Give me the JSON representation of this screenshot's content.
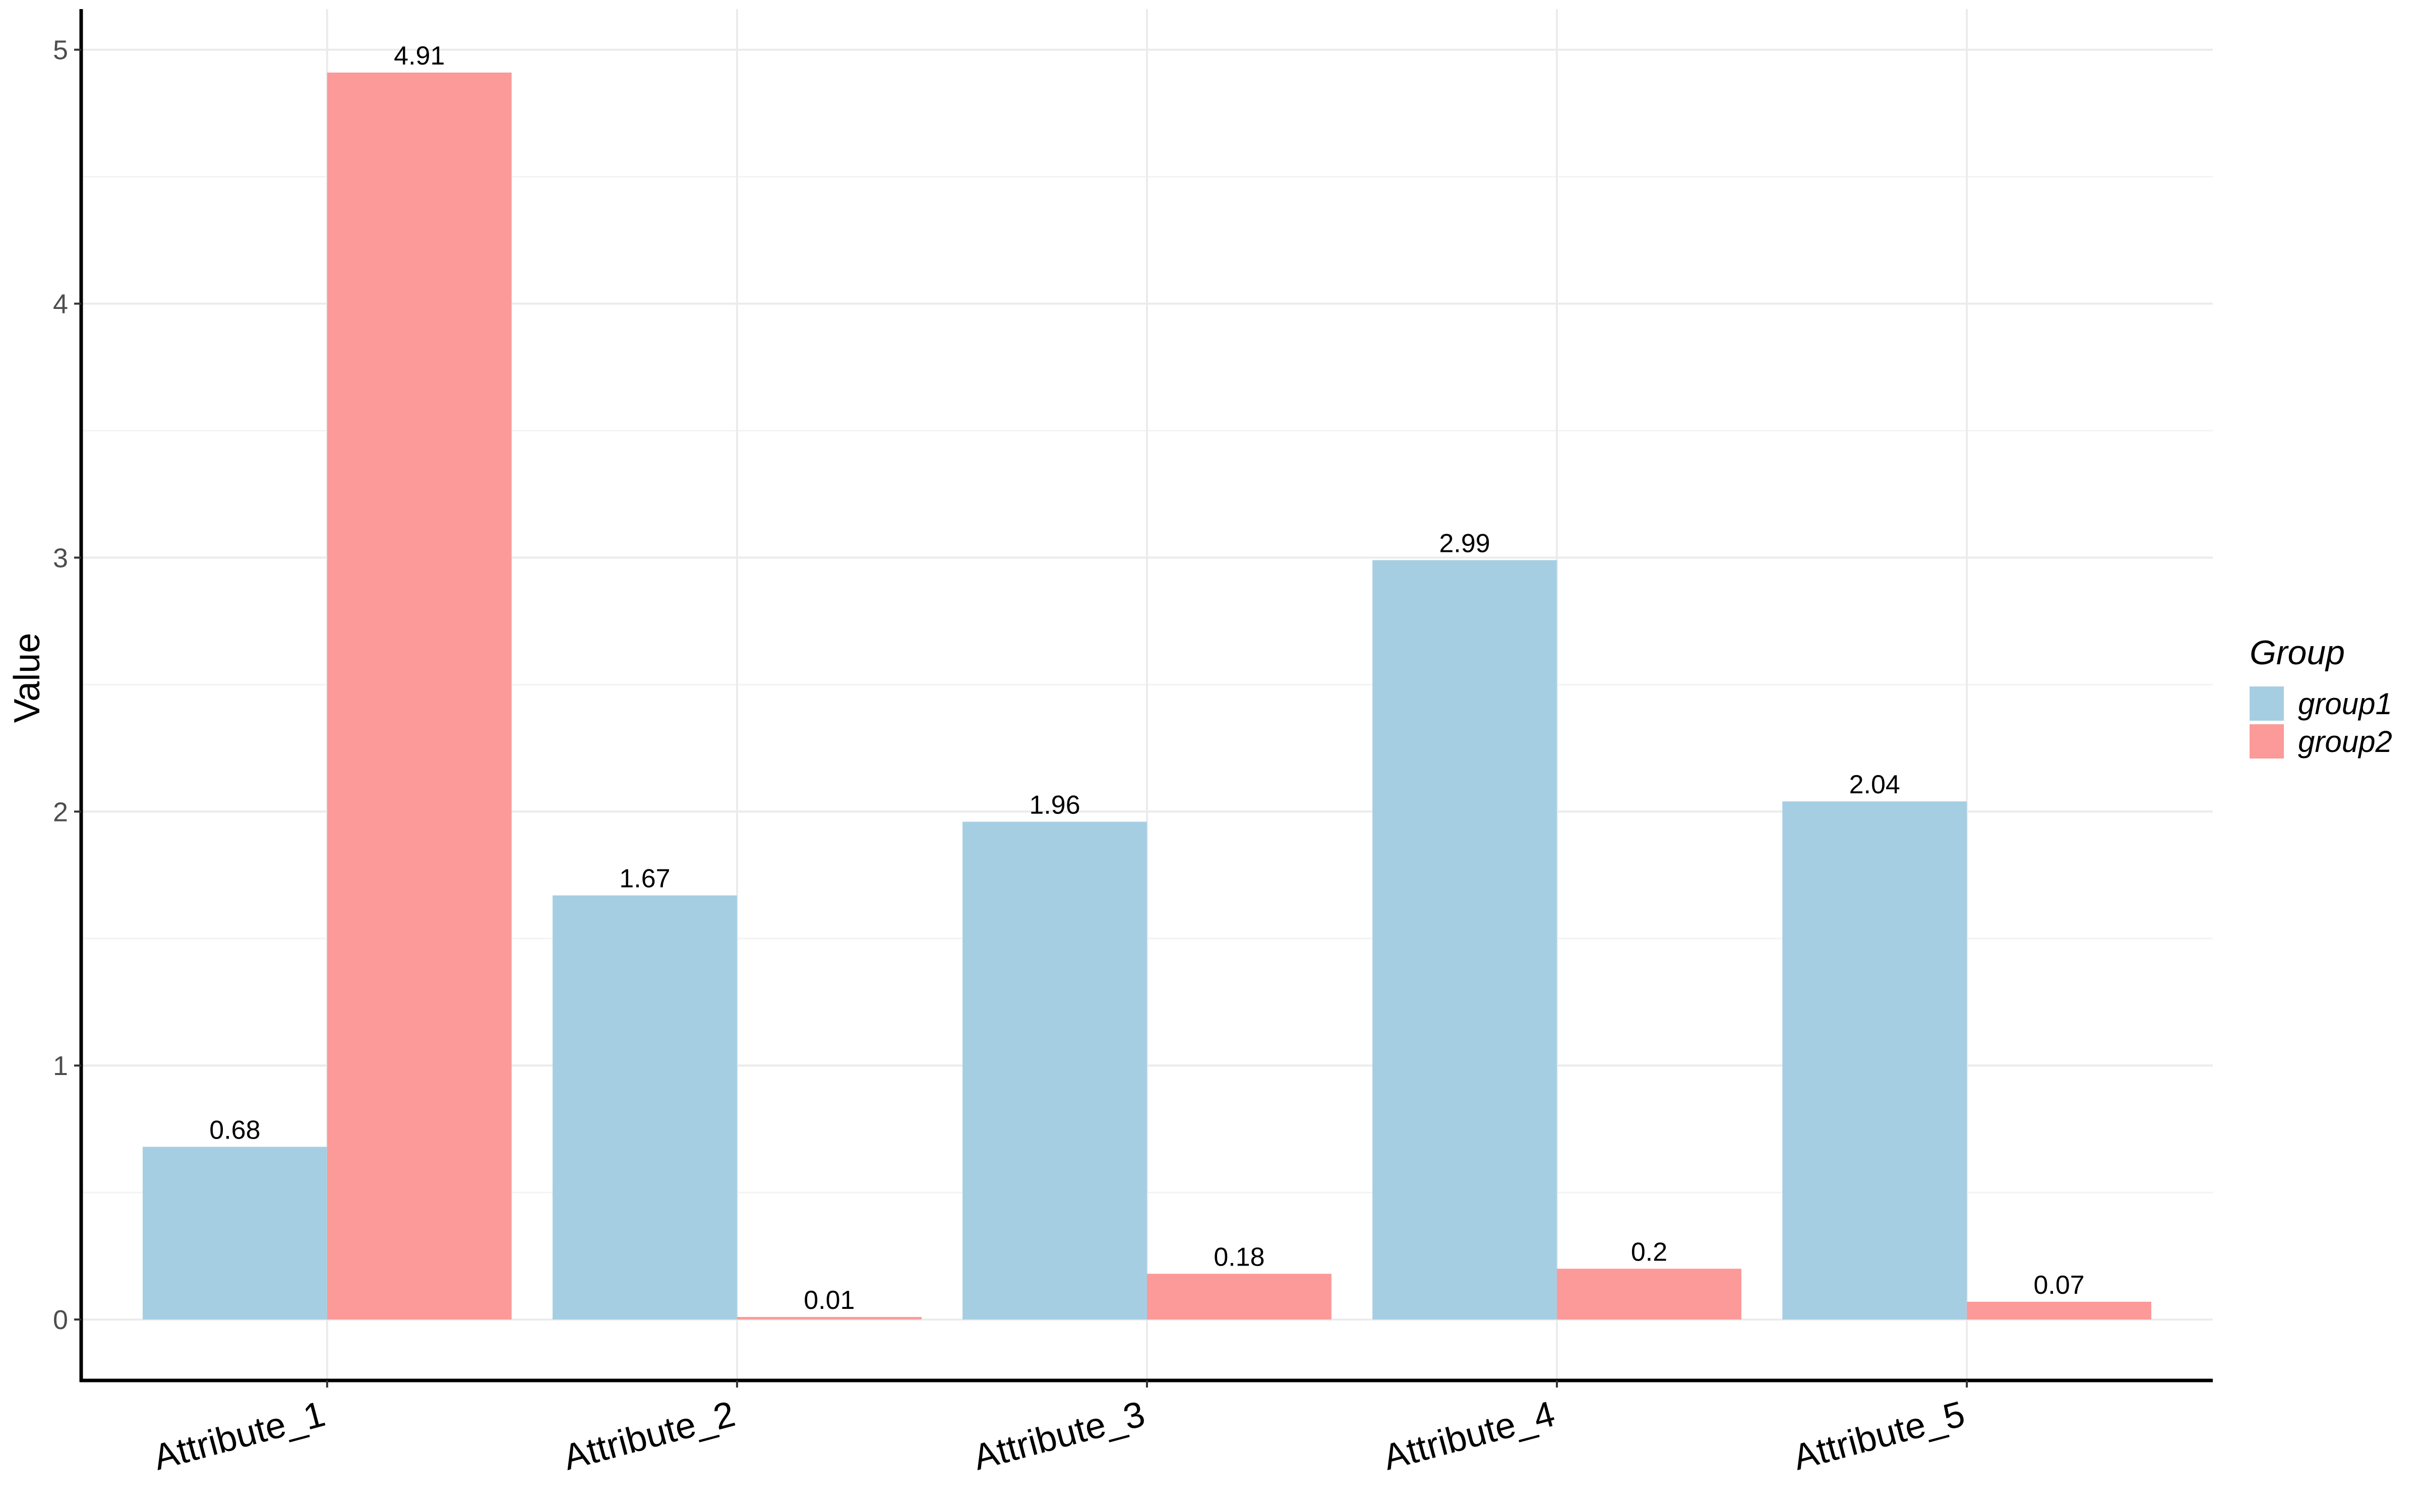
{
  "chart_data": {
    "type": "bar",
    "title": "",
    "xlabel": "",
    "ylabel": "Value",
    "categories": [
      "Attribute_1",
      "Attribute_2",
      "Attribute_3",
      "Attribute_4",
      "Attribute_5"
    ],
    "series": [
      {
        "name": "group1",
        "color": "#a6cee3",
        "values": [
          0.68,
          1.67,
          1.96,
          2.99,
          2.04
        ],
        "labels": [
          "0.68",
          "1.67",
          "1.96",
          "2.99",
          "2.04"
        ]
      },
      {
        "name": "group2",
        "color": "#fb9a99",
        "values": [
          4.91,
          0.01,
          0.18,
          0.2,
          0.07
        ],
        "labels": [
          "4.91",
          "0.01",
          "0.18",
          "0.2",
          "0.07"
        ]
      }
    ],
    "ylim": [
      -0.24,
      5.16
    ],
    "yticks": [
      0,
      1,
      2,
      3,
      4,
      5
    ],
    "grid": true,
    "legend": {
      "title": "Group",
      "position": "right"
    }
  }
}
